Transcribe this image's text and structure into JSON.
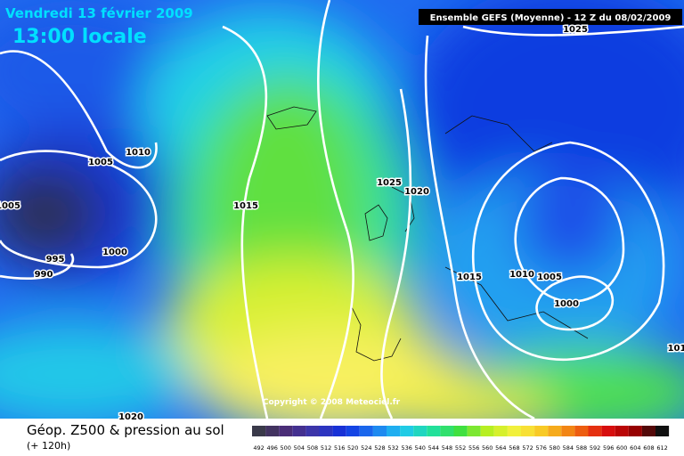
{
  "header": {
    "date": "Vendredi 13 février 2009",
    "time": "13:00 locale",
    "model": "Ensemble GEFS (Moyenne)  - 12 Z du 08/02/2009"
  },
  "copyright": "Copyright © 2008 Meteociel.fr",
  "isobars": [
    "1025",
    "1010",
    "1005",
    "1005",
    "1015",
    "1025",
    "1020",
    "1000",
    "995",
    "990",
    "1015",
    "1010",
    "1005",
    "1000",
    "1020",
    "101"
  ],
  "footer": {
    "title": "Géop. Z500 & pression au sol",
    "lead": "(+ 120h)"
  },
  "legend": {
    "labels": [
      492,
      496,
      500,
      504,
      508,
      512,
      516,
      520,
      524,
      528,
      532,
      536,
      540,
      544,
      548,
      552,
      556,
      560,
      564,
      568,
      572,
      576,
      580,
      584,
      588,
      592,
      596,
      600,
      604,
      608,
      612
    ]
  }
}
